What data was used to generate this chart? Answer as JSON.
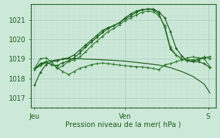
{
  "bg_color": "#cce8d8",
  "grid_major_color": "#aacfbc",
  "grid_minor_color": "#bbdccb",
  "line_color_dark": "#1a5c1a",
  "line_color_medium": "#2e7a2e",
  "xlabel": "Pression niveau de la mer( hPa )",
  "xtick_labels": [
    "Jeu",
    "Ven",
    "S"
  ],
  "xtick_positions": [
    0,
    48,
    92
  ],
  "yticks": [
    1017,
    1018,
    1019,
    1020,
    1021
  ],
  "ylim": [
    1016.5,
    1021.8
  ],
  "xlim": [
    -2,
    96
  ],
  "line1_x": [
    0,
    3,
    6,
    9,
    12,
    15,
    18,
    21,
    24,
    27,
    30,
    33,
    36,
    39,
    42,
    45,
    48,
    51,
    54,
    57,
    60,
    63,
    66,
    69,
    72,
    75,
    78,
    81,
    84,
    87,
    90,
    93
  ],
  "line1_y": [
    1017.65,
    1018.3,
    1018.7,
    1018.85,
    1018.9,
    1019.0,
    1019.05,
    1019.2,
    1019.45,
    1019.7,
    1019.95,
    1020.2,
    1020.45,
    1020.6,
    1020.7,
    1020.85,
    1021.05,
    1021.2,
    1021.38,
    1021.5,
    1021.55,
    1021.55,
    1021.4,
    1021.1,
    1020.4,
    1019.55,
    1019.15,
    1018.9,
    1018.85,
    1018.85,
    1018.75,
    1018.55
  ],
  "line2_x": [
    0,
    3,
    6,
    9,
    12,
    15,
    18,
    21,
    24,
    27,
    30,
    33,
    36,
    39,
    42,
    45,
    48,
    51,
    54,
    57,
    60,
    63,
    66,
    69,
    72,
    75,
    78,
    81,
    84,
    87,
    90,
    93
  ],
  "line2_y": [
    1018.5,
    1018.75,
    1018.85,
    1018.7,
    1018.65,
    1018.8,
    1018.9,
    1019.05,
    1019.3,
    1019.6,
    1019.85,
    1020.1,
    1020.35,
    1020.55,
    1020.7,
    1020.85,
    1021.1,
    1021.3,
    1021.45,
    1021.52,
    1021.55,
    1021.5,
    1021.3,
    1020.6,
    1019.5,
    1019.2,
    1019.0,
    1018.9,
    1018.9,
    1018.95,
    1019.05,
    1019.1
  ],
  "line3_x": [
    0,
    3,
    6,
    9,
    12,
    15,
    18,
    21,
    24,
    27,
    30,
    33,
    36,
    39,
    42,
    45,
    48,
    51,
    54,
    57,
    60,
    63,
    66,
    69,
    72,
    75,
    78,
    81,
    84,
    87,
    90,
    93
  ],
  "line3_y": [
    1018.5,
    1019.0,
    1019.05,
    1018.85,
    1018.5,
    1018.65,
    1018.85,
    1018.95,
    1019.1,
    1019.35,
    1019.65,
    1019.9,
    1020.15,
    1020.4,
    1020.55,
    1020.75,
    1020.95,
    1021.1,
    1021.25,
    1021.38,
    1021.45,
    1021.4,
    1021.2,
    1020.7,
    1019.6,
    1019.2,
    1019.0,
    1018.95,
    1018.95,
    1019.0,
    1019.1,
    1019.0
  ],
  "line4_x": [
    0,
    6,
    12,
    18,
    24,
    30,
    36,
    42,
    48,
    54,
    60,
    66,
    72,
    78,
    84,
    90,
    93
  ],
  "line4_y": [
    1018.5,
    1018.85,
    1018.95,
    1019.0,
    1019.0,
    1018.98,
    1018.95,
    1018.92,
    1018.88,
    1018.82,
    1018.75,
    1018.68,
    1018.55,
    1018.35,
    1018.1,
    1017.7,
    1017.25
  ],
  "line5_x": [
    0,
    3,
    6,
    9,
    12,
    15,
    18,
    21,
    24,
    27,
    30,
    33,
    36,
    39,
    42,
    45,
    48,
    51,
    54,
    57,
    60,
    63,
    66,
    69,
    72,
    75,
    78,
    81,
    84,
    87,
    90,
    93
  ],
  "line5_y": [
    1018.45,
    1018.65,
    1018.8,
    1018.72,
    1018.55,
    1018.35,
    1018.2,
    1018.35,
    1018.52,
    1018.6,
    1018.7,
    1018.75,
    1018.78,
    1018.75,
    1018.72,
    1018.68,
    1018.65,
    1018.62,
    1018.6,
    1018.58,
    1018.55,
    1018.5,
    1018.45,
    1018.7,
    1018.75,
    1018.85,
    1018.95,
    1019.05,
    1019.1,
    1019.05,
    1019.0,
    1018.6
  ]
}
